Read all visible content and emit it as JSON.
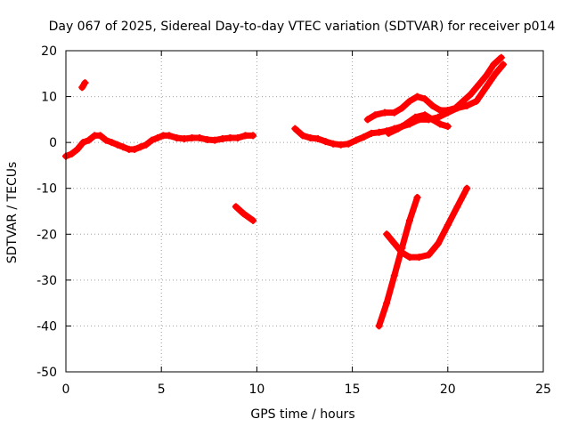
{
  "chart_data": {
    "type": "scatter",
    "title": "Day 067 of 2025, Sidereal Day-to-day VTEC variation (SDTVAR) for receiver p014",
    "xlabel": "GPS time / hours",
    "ylabel": "SDTVAR / TECUs",
    "xlim": [
      0,
      25
    ],
    "ylim": [
      -50,
      20
    ],
    "xticks": [
      "0",
      "5",
      "10",
      "15",
      "20",
      "25"
    ],
    "yticks": [
      "20",
      "10",
      "0",
      "-10",
      "-20",
      "-30",
      "-40",
      "-50"
    ],
    "grid": true,
    "legend": "none",
    "marker_color": "#ff0000",
    "series": [
      {
        "points": [
          [
            0.0,
            -3
          ],
          [
            0.3,
            -2.5
          ],
          [
            0.6,
            -1.5
          ],
          [
            0.9,
            0
          ],
          [
            1.2,
            0.5
          ],
          [
            1.5,
            1.5
          ],
          [
            1.8,
            1.5
          ],
          [
            2.1,
            0.5
          ],
          [
            2.4,
            0
          ],
          [
            2.7,
            -0.5
          ],
          [
            3.0,
            -1
          ],
          [
            3.3,
            -1.5
          ],
          [
            3.6,
            -1.5
          ],
          [
            3.9,
            -1
          ],
          [
            4.2,
            -0.5
          ],
          [
            4.5,
            0.5
          ],
          [
            4.8,
            1
          ],
          [
            5.1,
            1.5
          ],
          [
            5.4,
            1.5
          ],
          [
            5.8,
            1
          ],
          [
            6.2,
            0.8
          ],
          [
            6.6,
            1
          ],
          [
            7.0,
            1
          ],
          [
            7.4,
            0.6
          ],
          [
            7.8,
            0.5
          ],
          [
            8.2,
            0.8
          ],
          [
            8.6,
            1
          ],
          [
            9.0,
            1
          ],
          [
            9.4,
            1.5
          ],
          [
            9.8,
            1.5
          ]
        ]
      },
      {
        "points": [
          [
            0.85,
            12
          ],
          [
            1.0,
            13
          ]
        ]
      },
      {
        "points": [
          [
            8.9,
            -14
          ],
          [
            9.3,
            -15.5
          ],
          [
            9.8,
            -17
          ]
        ]
      },
      {
        "points": [
          [
            12.0,
            3
          ],
          [
            12.4,
            1.5
          ],
          [
            12.8,
            1
          ],
          [
            13.2,
            0.8
          ],
          [
            13.6,
            0.2
          ],
          [
            14.0,
            -0.3
          ],
          [
            14.4,
            -0.5
          ],
          [
            14.8,
            -0.3
          ],
          [
            15.2,
            0.5
          ],
          [
            15.6,
            1.2
          ],
          [
            16.0,
            2
          ],
          [
            16.4,
            2.2
          ],
          [
            16.8,
            2.5
          ],
          [
            17.2,
            3
          ],
          [
            17.6,
            3.5
          ],
          [
            18.0,
            4
          ],
          [
            18.5,
            5
          ],
          [
            19.0,
            5
          ],
          [
            19.5,
            5.5
          ],
          [
            20.0,
            6.5
          ],
          [
            20.5,
            7.5
          ],
          [
            21.0,
            8
          ],
          [
            21.5,
            9
          ],
          [
            22.0,
            12
          ],
          [
            22.5,
            15
          ],
          [
            22.9,
            17
          ]
        ]
      },
      {
        "points": [
          [
            15.8,
            5
          ],
          [
            16.2,
            6
          ],
          [
            16.7,
            6.5
          ],
          [
            17.2,
            6.5
          ],
          [
            17.6,
            7.5
          ],
          [
            18.0,
            9
          ],
          [
            18.4,
            10
          ],
          [
            18.8,
            9.5
          ],
          [
            19.2,
            8
          ],
          [
            19.6,
            7
          ],
          [
            20.0,
            7
          ],
          [
            20.4,
            7.5
          ],
          [
            20.8,
            9
          ],
          [
            21.2,
            10.5
          ],
          [
            21.6,
            12.5
          ],
          [
            22.0,
            14.5
          ],
          [
            22.4,
            17
          ],
          [
            22.8,
            18.5
          ]
        ]
      },
      {
        "points": [
          [
            16.9,
            2
          ],
          [
            17.4,
            3
          ],
          [
            17.8,
            4
          ],
          [
            18.3,
            5.5
          ],
          [
            18.8,
            6
          ],
          [
            19.2,
            5
          ],
          [
            19.6,
            4
          ],
          [
            20.0,
            3.5
          ]
        ]
      },
      {
        "points": [
          [
            16.4,
            -40
          ],
          [
            16.8,
            -35
          ],
          [
            17.2,
            -29
          ],
          [
            17.6,
            -23
          ],
          [
            18.0,
            -17
          ],
          [
            18.4,
            -12
          ]
        ]
      },
      {
        "points": [
          [
            16.8,
            -20
          ],
          [
            17.2,
            -22
          ],
          [
            17.6,
            -24
          ],
          [
            18.0,
            -25
          ],
          [
            18.5,
            -25
          ],
          [
            19.0,
            -24.5
          ],
          [
            19.5,
            -22
          ],
          [
            20.0,
            -18
          ],
          [
            20.5,
            -14
          ],
          [
            21.0,
            -10
          ]
        ]
      }
    ]
  }
}
